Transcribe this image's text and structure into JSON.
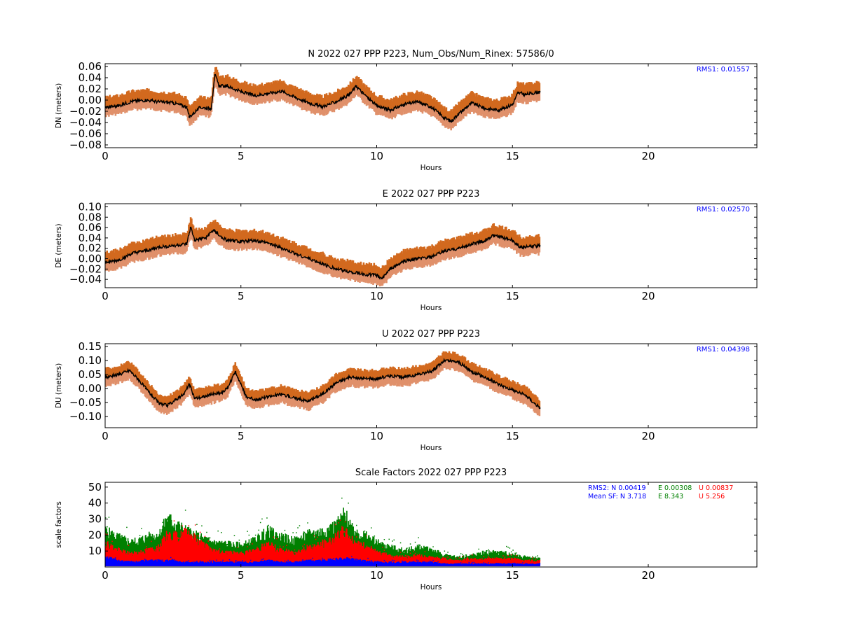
{
  "chart_data": [
    {
      "type": "line",
      "title": "N 2022 027 PPP  P223, Num_Obs/Num_Rinex: 57586/0",
      "xlabel": "Hours",
      "ylabel": "DN (meters)",
      "xlim": [
        0,
        24
      ],
      "ylim": [
        -0.085,
        0.065
      ],
      "xticks": [
        0,
        5,
        10,
        15,
        20
      ],
      "yticks": [
        -0.08,
        -0.06,
        -0.04,
        -0.02,
        0.0,
        0.02,
        0.04,
        0.06
      ],
      "yticklabels": [
        "−0.08",
        "−0.06",
        "−0.04",
        "−0.02",
        "0.00",
        "0.02",
        "0.04",
        "0.06"
      ],
      "annotation": "RMS1:  0.01557",
      "annotation_color": "#0000ff",
      "series": [
        {
          "x": [
            0,
            0.5,
            1,
            1.5,
            2,
            2.5,
            3,
            3.1,
            3.5,
            3.9,
            4.05,
            4.2,
            4.5,
            5,
            5.5,
            6,
            6.5,
            7,
            7.5,
            8,
            8.5,
            9,
            9.25,
            9.5,
            10,
            10.5,
            11,
            11.5,
            12,
            12.5,
            12.75,
            13,
            13.5,
            14,
            14.5,
            15,
            15.2,
            15.5,
            16
          ],
          "values": [
            -0.013,
            -0.01,
            -0.002,
            0.0,
            -0.003,
            -0.005,
            -0.012,
            -0.03,
            -0.013,
            -0.015,
            0.045,
            0.025,
            0.025,
            0.015,
            0.008,
            0.012,
            0.016,
            0.005,
            -0.005,
            -0.012,
            -0.003,
            0.01,
            0.025,
            0.012,
            -0.01,
            -0.018,
            -0.008,
            -0.003,
            -0.012,
            -0.032,
            -0.038,
            -0.025,
            -0.005,
            -0.015,
            -0.018,
            -0.008,
            0.013,
            0.01,
            0.015
          ]
        }
      ],
      "band_upper_offset": 0.018,
      "band_lower_offset": -0.015
    },
    {
      "type": "line",
      "title": "E 2022 027 PPP  P223",
      "xlabel": "Hours",
      "ylabel": "DE (meters)",
      "xlim": [
        0,
        24
      ],
      "ylim": [
        -0.056,
        0.106
      ],
      "xticks": [
        0,
        5,
        10,
        15,
        20
      ],
      "yticks": [
        -0.04,
        -0.02,
        0.0,
        0.02,
        0.04,
        0.06,
        0.08,
        0.1
      ],
      "yticklabels": [
        "−0.04",
        "−0.02",
        "0.00",
        "0.02",
        "0.04",
        "0.06",
        "0.08",
        "0.10"
      ],
      "annotation": "RMS1:  0.02570",
      "annotation_color": "#0000ff",
      "series": [
        {
          "x": [
            0,
            0.5,
            1,
            1.5,
            2,
            2.5,
            3,
            3.15,
            3.3,
            3.7,
            4,
            4.3,
            4.5,
            5,
            5.5,
            6,
            6.5,
            7,
            7.5,
            8,
            8.5,
            9,
            9.5,
            10,
            10.2,
            10.5,
            11,
            11.5,
            12,
            12.5,
            13,
            13.5,
            14,
            14.3,
            14.5,
            15,
            15.3,
            16
          ],
          "values": [
            -0.008,
            -0.003,
            0.01,
            0.015,
            0.022,
            0.025,
            0.028,
            0.06,
            0.035,
            0.04,
            0.055,
            0.04,
            0.035,
            0.033,
            0.035,
            0.03,
            0.02,
            0.01,
            0.0,
            -0.01,
            -0.02,
            -0.025,
            -0.03,
            -0.032,
            -0.038,
            -0.02,
            -0.005,
            0.0,
            0.003,
            0.015,
            0.02,
            0.028,
            0.035,
            0.045,
            0.042,
            0.035,
            0.022,
            0.025
          ]
        }
      ],
      "band_upper_offset": 0.02,
      "band_lower_offset": -0.016
    },
    {
      "type": "line",
      "title": "U 2022 027 PPP  P223",
      "xlabel": "Hours",
      "ylabel": "DU (meters)",
      "xlim": [
        0,
        24
      ],
      "ylim": [
        -0.14,
        0.16
      ],
      "xticks": [
        0,
        5,
        10,
        15,
        20
      ],
      "yticks": [
        -0.1,
        -0.05,
        0.0,
        0.05,
        0.1,
        0.15
      ],
      "yticklabels": [
        "−0.10",
        "−0.05",
        "0.00",
        "0.05",
        "0.10",
        "0.15"
      ],
      "annotation": "RMS1:  0.04398",
      "annotation_color": "#0000ff",
      "series": [
        {
          "x": [
            0,
            0.5,
            0.9,
            1.2,
            1.5,
            2,
            2.3,
            2.6,
            2.9,
            3.1,
            3.3,
            3.6,
            4,
            4.3,
            4.5,
            4.8,
            5.2,
            5.5,
            6,
            6.5,
            7,
            7.5,
            8,
            8.5,
            9,
            9.5,
            10,
            10.5,
            11,
            11.5,
            12,
            12.5,
            13,
            13.5,
            14,
            14.5,
            15,
            15.5,
            16
          ],
          "values": [
            0.04,
            0.05,
            0.065,
            0.035,
            0.0,
            -0.055,
            -0.06,
            -0.04,
            -0.02,
            0.015,
            -0.035,
            -0.03,
            -0.02,
            -0.015,
            0.0,
            0.06,
            -0.03,
            -0.04,
            -0.03,
            -0.02,
            -0.035,
            -0.045,
            -0.02,
            0.02,
            0.04,
            0.035,
            0.035,
            0.045,
            0.04,
            0.05,
            0.06,
            0.1,
            0.095,
            0.06,
            0.04,
            0.015,
            -0.005,
            -0.025,
            -0.07
          ]
        }
      ],
      "band_upper_offset": 0.03,
      "band_lower_offset": -0.03
    },
    {
      "type": "scatter",
      "title": "Scale Factors 2022 027 PPP  P223",
      "xlabel": "Hours",
      "ylabel": "scale factors",
      "xlim": [
        0,
        24
      ],
      "ylim": [
        0,
        53
      ],
      "xticks": [
        0,
        5,
        10,
        15,
        20
      ],
      "yticks": [
        10,
        20,
        30,
        40,
        50
      ],
      "yticklabels": [
        "10",
        "20",
        "30",
        "40",
        "50"
      ],
      "annotations": {
        "rms2_prefix": "RMS2: N  0.00419",
        "rms2_e": "E  0.00308",
        "rms2_u": "U  0.00837",
        "meansf_prefix": "Mean SF: N   3.718",
        "meansf_e": "E   8.343",
        "meansf_u": "U   5.256"
      },
      "colors": {
        "N": "#0000ff",
        "E": "#008000",
        "U": "#ff0000"
      },
      "series": [
        {
          "name": "E",
          "color": "#008000",
          "x": [
            0,
            0.5,
            1,
            1.5,
            2,
            2.3,
            2.7,
            3,
            3.5,
            4,
            4.5,
            5,
            5.5,
            6,
            6.5,
            7,
            7.5,
            8,
            8.5,
            8.8,
            9.2,
            9.7,
            10,
            10.5,
            11,
            11.5,
            12,
            12.5,
            13,
            13.5,
            14,
            14.5,
            15,
            15.5,
            16
          ],
          "values": [
            22,
            18,
            15,
            18,
            20,
            30,
            25,
            22,
            18,
            15,
            14,
            13,
            16,
            22,
            18,
            16,
            20,
            22,
            25,
            32,
            22,
            18,
            15,
            12,
            10,
            12,
            11,
            7,
            6,
            7,
            9,
            9,
            8,
            6,
            5
          ]
        },
        {
          "name": "U",
          "color": "#ff0000",
          "x": [
            0,
            0.5,
            1,
            1.5,
            2,
            2.3,
            2.7,
            3,
            3.5,
            4,
            4.5,
            5,
            5.5,
            6,
            6.5,
            7,
            7.5,
            8,
            8.5,
            8.8,
            9.2,
            9.7,
            10,
            10.5,
            11,
            11.5,
            12,
            12.5,
            13,
            13.5,
            14,
            14.5,
            15,
            15.5,
            16
          ],
          "values": [
            15,
            10,
            8,
            10,
            12,
            20,
            18,
            22,
            15,
            10,
            9,
            8,
            10,
            14,
            10,
            9,
            12,
            14,
            18,
            22,
            15,
            12,
            9,
            7,
            6,
            7,
            6,
            5,
            4,
            5,
            5,
            5,
            5,
            4,
            4
          ]
        },
        {
          "name": "N",
          "color": "#0000ff",
          "x": [
            0,
            0.5,
            1,
            1.5,
            2,
            2.5,
            3,
            3.5,
            4,
            4.5,
            5,
            5.5,
            6,
            6.5,
            7,
            7.5,
            8,
            8.5,
            9,
            9.5,
            10,
            10.5,
            11,
            11.5,
            12,
            12.5,
            13,
            13.5,
            14,
            14.5,
            15,
            15.5,
            16
          ],
          "values": [
            6,
            4,
            3,
            4,
            4,
            4,
            3,
            3,
            3,
            3,
            3,
            3,
            4,
            3,
            3,
            4,
            4,
            5,
            5,
            4,
            3,
            3,
            3,
            3,
            3,
            2,
            2,
            2,
            2,
            2,
            2,
            2,
            2
          ]
        }
      ]
    }
  ]
}
